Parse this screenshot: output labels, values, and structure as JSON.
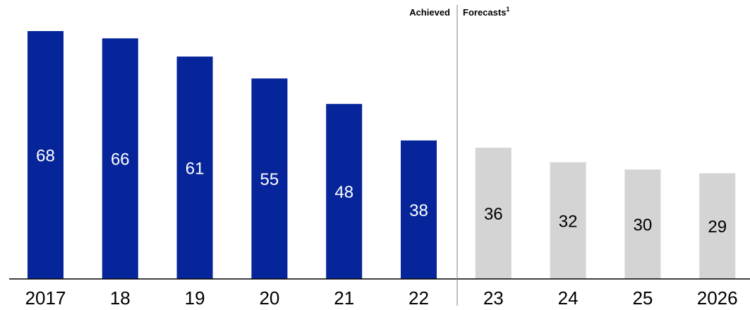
{
  "chart_data": {
    "type": "bar",
    "categories": [
      "2017",
      "18",
      "19",
      "20",
      "21",
      "22",
      "23",
      "24",
      "25",
      "2026"
    ],
    "values": [
      68,
      66,
      61,
      55,
      48,
      38,
      36,
      32,
      30,
      29
    ],
    "value_labels": [
      "68",
      "66",
      "61",
      "55",
      "48",
      "38",
      "36",
      "32",
      "30",
      "29"
    ],
    "section_labels": {
      "achieved": "Achieved",
      "forecasts": "Forecasts",
      "forecasts_superscript": "1"
    },
    "achieved_count": 6,
    "ylim": [
      0,
      68
    ],
    "grid": false,
    "legend": "none",
    "colors": {
      "achieved": "#06259A",
      "forecast": "#D4D4D4",
      "achieved_label": "#FFFFFF",
      "forecast_label": "#000000",
      "axis": "#000000",
      "divider": "#808080"
    }
  }
}
